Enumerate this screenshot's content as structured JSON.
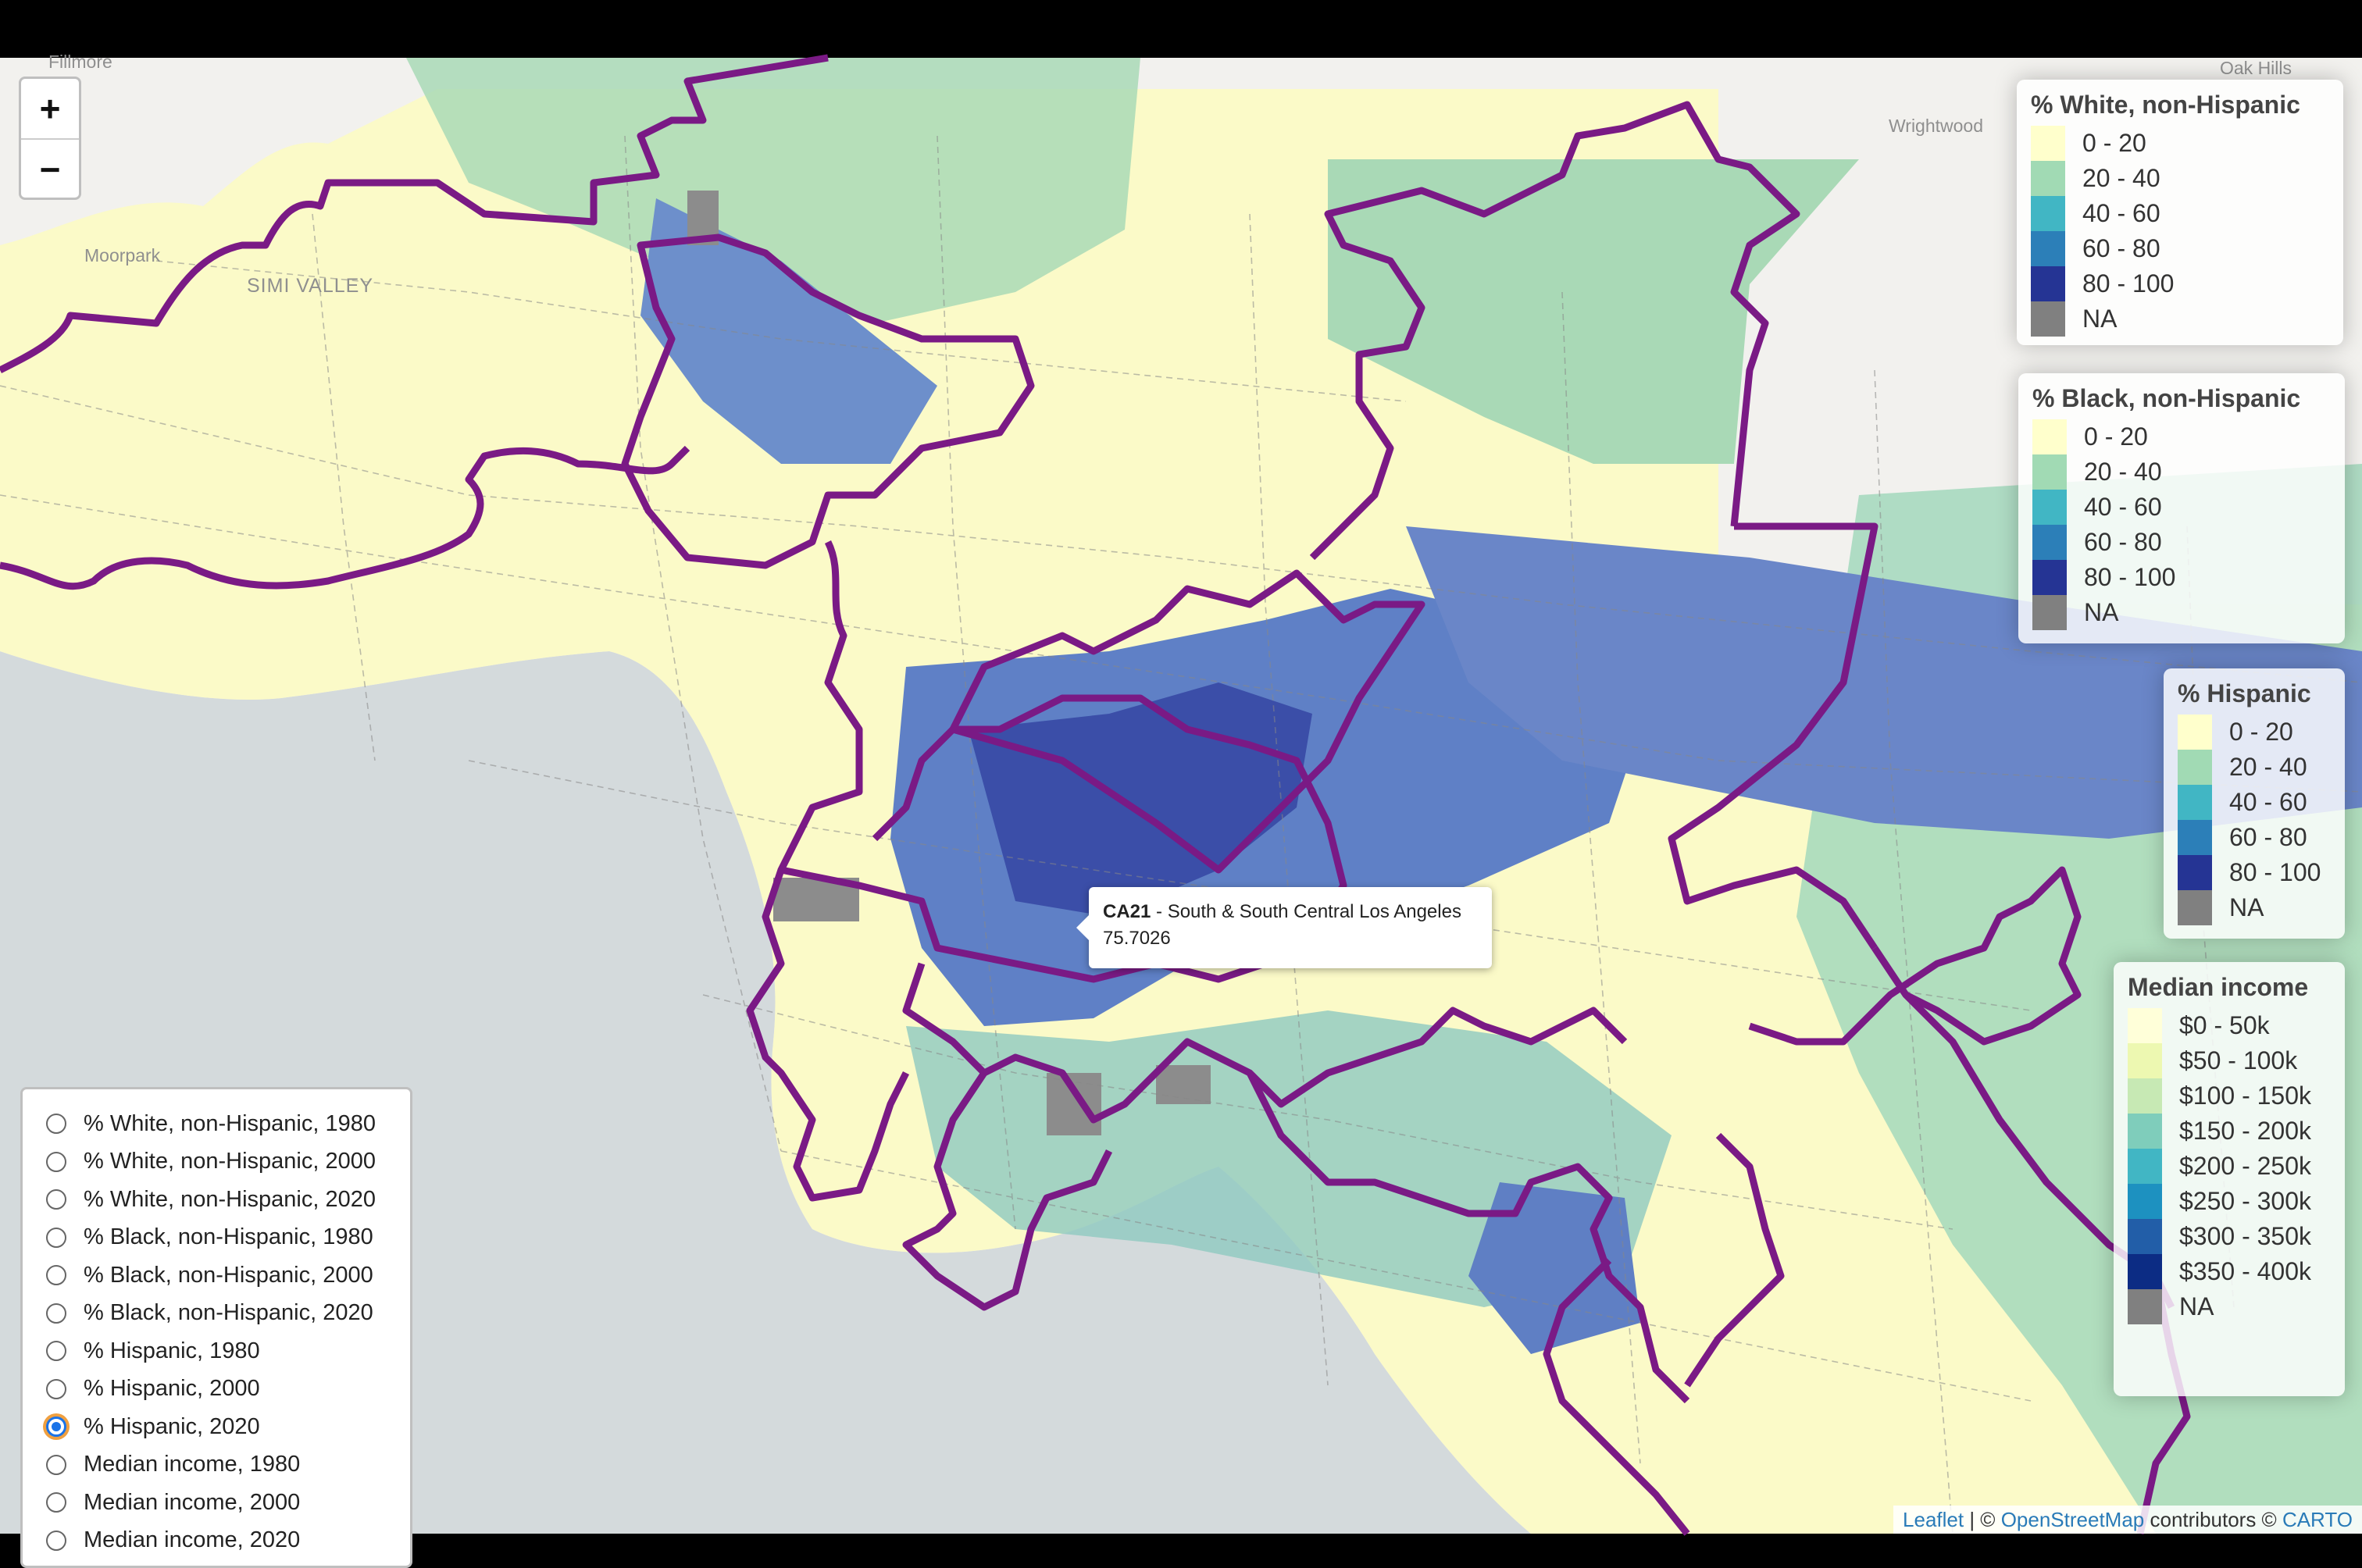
{
  "map": {
    "place_labels": [
      "Fillmore",
      "Oak Hills",
      "Wrightwood",
      "Moorpark",
      "SIMI VALLEY"
    ],
    "zoom_in": "+",
    "zoom_out": "−",
    "tooltip": {
      "district": "CA21",
      "name": " - South & South Central Los Angeles",
      "value": "75.7026"
    },
    "attribution": {
      "leaflet": "Leaflet",
      "sep1": " | © ",
      "osm": "OpenStreetMap",
      "mid": " contributors © ",
      "carto": "CARTO"
    },
    "colors": {
      "water": "#d4dadc",
      "land": "#f2f1ee",
      "district_border": "#7a1a85"
    }
  },
  "legends": [
    {
      "title": "% White, non-Hispanic",
      "items": [
        {
          "label": "0 - 20",
          "color": "#ffffcc"
        },
        {
          "label": "20 - 40",
          "color": "#a1dab4"
        },
        {
          "label": "40 - 60",
          "color": "#41b6c4"
        },
        {
          "label": "60 - 80",
          "color": "#2c7fb8"
        },
        {
          "label": "80 - 100",
          "color": "#253494"
        },
        {
          "label": "NA",
          "color": "#808080"
        }
      ]
    },
    {
      "title": "% Black, non-Hispanic",
      "items": [
        {
          "label": "0 - 20",
          "color": "#ffffcc"
        },
        {
          "label": "20 - 40",
          "color": "#a1dab4"
        },
        {
          "label": "40 - 60",
          "color": "#41b6c4"
        },
        {
          "label": "60 - 80",
          "color": "#2c7fb8"
        },
        {
          "label": "80 - 100",
          "color": "#253494"
        },
        {
          "label": "NA",
          "color": "#808080"
        }
      ]
    },
    {
      "title": "% Hispanic",
      "items": [
        {
          "label": "0 - 20",
          "color": "#ffffcc"
        },
        {
          "label": "20 - 40",
          "color": "#a1dab4"
        },
        {
          "label": "40 - 60",
          "color": "#41b6c4"
        },
        {
          "label": "60 - 80",
          "color": "#2c7fb8"
        },
        {
          "label": "80 - 100",
          "color": "#253494"
        },
        {
          "label": "NA",
          "color": "#808080"
        }
      ]
    },
    {
      "title": "Median income",
      "items": [
        {
          "label": "$0 - 50k",
          "color": "#ffffd9"
        },
        {
          "label": "$50 - 100k",
          "color": "#edf8b1"
        },
        {
          "label": "$100 - 150k",
          "color": "#c7e9b4"
        },
        {
          "label": "$150 - 200k",
          "color": "#7fcdbb"
        },
        {
          "label": "$200 - 250k",
          "color": "#41b6c4"
        },
        {
          "label": "$250 - 300k",
          "color": "#1d91c0"
        },
        {
          "label": "$300 - 350k",
          "color": "#225ea8"
        },
        {
          "label": "$350 - 400k",
          "color": "#0c2c84"
        },
        {
          "label": "NA",
          "color": "#808080"
        }
      ]
    }
  ],
  "layer_control": {
    "selected_index": 8,
    "options": [
      "% White, non-Hispanic, 1980",
      "% White, non-Hispanic, 2000",
      "% White, non-Hispanic, 2020",
      "% Black, non-Hispanic, 1980",
      "% Black, non-Hispanic, 2000",
      "% Black, non-Hispanic, 2020",
      "% Hispanic, 1980",
      "% Hispanic, 2000",
      "% Hispanic, 2020",
      "Median income, 1980",
      "Median income, 2000",
      "Median income, 2020"
    ]
  }
}
